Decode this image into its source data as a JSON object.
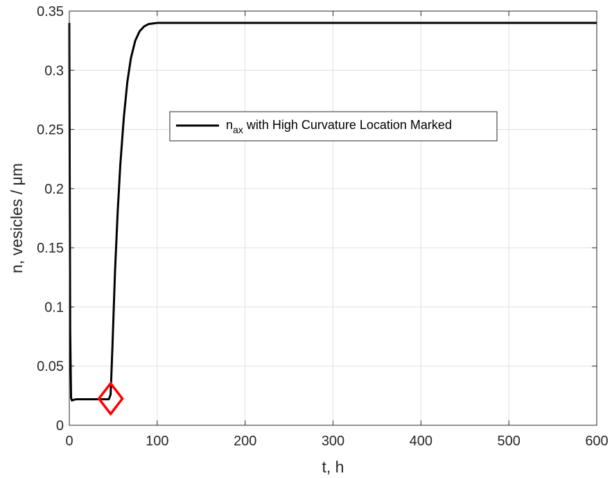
{
  "chart_data": {
    "type": "line",
    "xlabel": "t, h",
    "ylabel": "n,  vesicles / μm",
    "xlim": [
      0,
      600
    ],
    "ylim": [
      0,
      0.35
    ],
    "xticks": [
      0,
      100,
      200,
      300,
      400,
      500,
      600
    ],
    "xtick_labels": [
      "0",
      "100",
      "200",
      "300",
      "400",
      "500",
      "600"
    ],
    "yticks": [
      0,
      0.05,
      0.1,
      0.15,
      0.2,
      0.25,
      0.3,
      0.35
    ],
    "ytick_labels": [
      "0",
      "0.05",
      "0.1",
      "0.15",
      "0.2",
      "0.25",
      "0.3",
      "0.35"
    ],
    "grid": true,
    "legend_position": "upper-right inside plot",
    "series": [
      {
        "name": "n_ax with High Curvature Location Marked",
        "name_main": "n",
        "name_sub": "ax",
        "name_rest": " with High Curvature Location Marked",
        "color": "#000000",
        "x": [
          0,
          0.5,
          1,
          2,
          3,
          5,
          8,
          15,
          30,
          40,
          45,
          47,
          49,
          52,
          55,
          58,
          62,
          66,
          70,
          75,
          80,
          85,
          90,
          95,
          100,
          110,
          120,
          140,
          200,
          300,
          400,
          500,
          600
        ],
        "y": [
          0.34,
          0.2,
          0.08,
          0.023,
          0.021,
          0.0215,
          0.022,
          0.022,
          0.022,
          0.022,
          0.022,
          0.026,
          0.065,
          0.13,
          0.18,
          0.22,
          0.26,
          0.29,
          0.31,
          0.325,
          0.333,
          0.337,
          0.339,
          0.3395,
          0.34,
          0.34,
          0.34,
          0.34,
          0.34,
          0.34,
          0.34,
          0.34,
          0.34
        ]
      }
    ],
    "markers": [
      {
        "label": "High Curvature Location",
        "x": 47,
        "y": 0.0225,
        "shape": "diamond",
        "color": "#ff0000"
      }
    ]
  }
}
